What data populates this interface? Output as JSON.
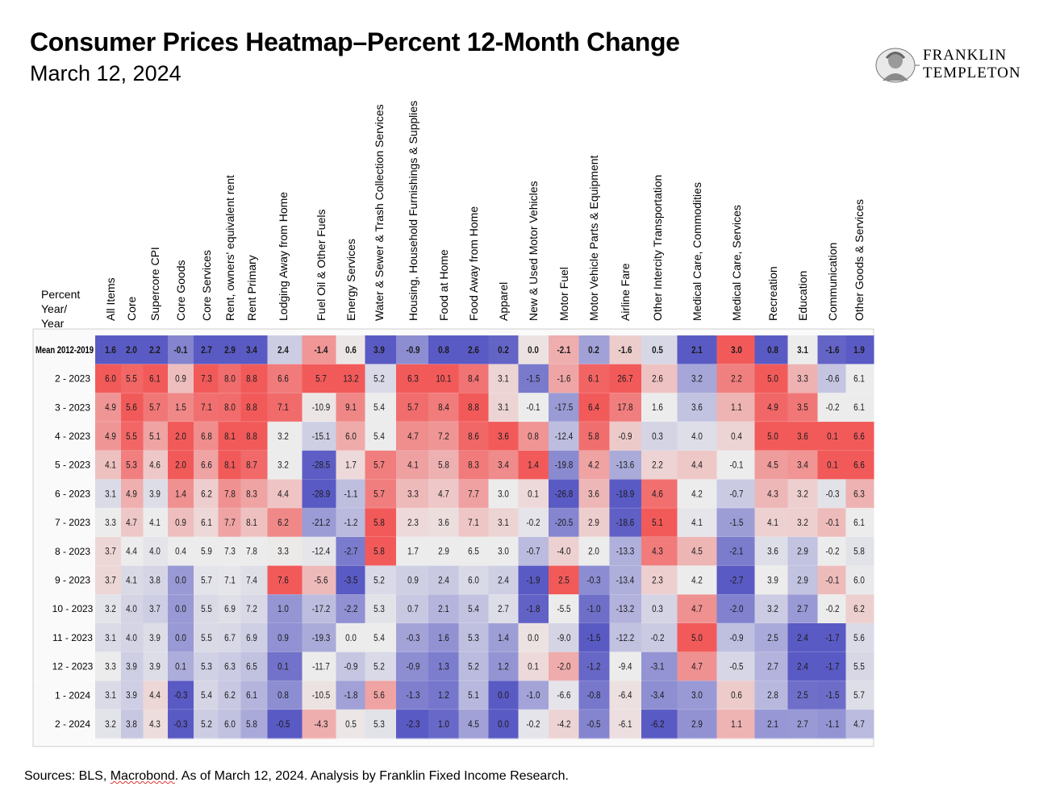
{
  "header": {
    "title": "Consumer Prices Heatmap–Percent 12-Month Change",
    "subtitle": "March 12, 2024"
  },
  "logo": {
    "line1": "FRANKLIN",
    "line2": "TEMPLETON"
  },
  "footer": {
    "source_prefix": "Sources: BLS, ",
    "source_macrobond": "Macrobond",
    "source_suffix": ". As of March 12, 2024. Analysis by Franklin Fixed Income Research."
  },
  "colors": {
    "low": "#5a5ac4",
    "neutral": "#ececec",
    "high": "#f25a5a"
  },
  "chart_data": {
    "type": "heatmap",
    "title": "Consumer Prices Heatmap–Percent 12-Month Change",
    "row_header_label": [
      "Percent",
      "Year/",
      "Year"
    ],
    "columns": [
      "All Items",
      "Core",
      "Supercore CPI",
      "Core Goods",
      "Core Services",
      "Rent, owners' equivalent rent",
      "Rent Primary",
      "Lodging Away from Home",
      "Fuel Oil & Other Fuels",
      "Energy Services",
      "Water & Sewer & Trash Collection Services",
      "Housing, Household Furnishings & Supplies",
      "Food at Home",
      "Food Away from Home",
      "Apparel",
      "New & Used Motor Vehicles",
      "Motor Fuel",
      "Motor Vehicle Parts & Equipment",
      "Airline Fare",
      "Other Intercity Transportation",
      "Medical Care, Commodities",
      "Medical Care, Services",
      "Recreation",
      "Education",
      "Communication",
      "Other Goods & Services"
    ],
    "rows": [
      {
        "label": "Mean 2012-2019",
        "values": [
          "1.6",
          "2.0",
          "2.2",
          "-0.1",
          "2.7",
          "2.9",
          "3.4",
          "2.4",
          "-1.4",
          "0.6",
          "3.9",
          "-0.9",
          "0.8",
          "2.6",
          "0.2",
          "0.0",
          "-2.1",
          "0.2",
          "-1.6",
          "0.5",
          "2.1",
          "3.0",
          "0.8",
          "3.1",
          "-1.6",
          "1.9"
        ]
      },
      {
        "label": "2 - 2023",
        "values": [
          "6.0",
          "5.5",
          "6.1",
          "0.9",
          "7.3",
          "8.0",
          "8.8",
          "6.6",
          "5.7",
          "13.2",
          "5.2",
          "6.3",
          "10.1",
          "8.4",
          "3.1",
          "-1.5",
          "-1.6",
          "6.1",
          "26.7",
          "2.6",
          "3.2",
          "2.2",
          "5.0",
          "3.3",
          "-0.6",
          "6.1"
        ]
      },
      {
        "label": "3 - 2023",
        "values": [
          "4.9",
          "5.6",
          "5.7",
          "1.5",
          "7.1",
          "8.0",
          "8.8",
          "7.1",
          "-10.9",
          "9.1",
          "5.4",
          "5.7",
          "8.4",
          "8.8",
          "3.1",
          "-0.1",
          "-17.5",
          "6.4",
          "17.8",
          "1.6",
          "3.6",
          "1.1",
          "4.9",
          "3.5",
          "-0.2",
          "6.1"
        ]
      },
      {
        "label": "4 - 2023",
        "values": [
          "4.9",
          "5.5",
          "5.1",
          "2.0",
          "6.8",
          "8.1",
          "8.8",
          "3.2",
          "-15.1",
          "6.0",
          "5.4",
          "4.7",
          "7.2",
          "8.6",
          "3.6",
          "0.8",
          "-12.4",
          "5.8",
          "-0.9",
          "0.3",
          "4.0",
          "0.4",
          "5.0",
          "3.6",
          "0.1",
          "6.6"
        ]
      },
      {
        "label": "5 - 2023",
        "values": [
          "4.1",
          "5.3",
          "4.6",
          "2.0",
          "6.6",
          "8.1",
          "8.7",
          "3.2",
          "-28.5",
          "1.7",
          "5.7",
          "4.1",
          "5.8",
          "8.3",
          "3.4",
          "1.4",
          "-19.8",
          "4.2",
          "-13.6",
          "2.2",
          "4.4",
          "-0.1",
          "4.5",
          "3.4",
          "0.1",
          "6.6"
        ]
      },
      {
        "label": "6 - 2023",
        "values": [
          "3.1",
          "4.9",
          "3.9",
          "1.4",
          "6.2",
          "7.8",
          "8.3",
          "4.4",
          "-28.9",
          "-1.1",
          "5.7",
          "3.3",
          "4.7",
          "7.7",
          "3.0",
          "0.1",
          "-26.8",
          "3.6",
          "-18.9",
          "4.6",
          "4.2",
          "-0.7",
          "4.3",
          "3.2",
          "-0.3",
          "6.3"
        ]
      },
      {
        "label": "7 - 2023",
        "values": [
          "3.3",
          "4.7",
          "4.1",
          "0.9",
          "6.1",
          "7.7",
          "8.1",
          "6.2",
          "-21.2",
          "-1.2",
          "5.8",
          "2.3",
          "3.6",
          "7.1",
          "3.1",
          "-0.2",
          "-20.5",
          "2.9",
          "-18.6",
          "5.1",
          "4.1",
          "-1.5",
          "4.1",
          "3.2",
          "-0.1",
          "6.1"
        ]
      },
      {
        "label": "8 - 2023",
        "values": [
          "3.7",
          "4.4",
          "4.0",
          "0.4",
          "5.9",
          "7.3",
          "7.8",
          "3.3",
          "-12.4",
          "-2.7",
          "5.8",
          "1.7",
          "2.9",
          "6.5",
          "3.0",
          "-0.7",
          "-4.0",
          "2.0",
          "-13.3",
          "4.3",
          "4.5",
          "-2.1",
          "3.6",
          "2.9",
          "-0.2",
          "5.8"
        ]
      },
      {
        "label": "9 - 2023",
        "values": [
          "3.7",
          "4.1",
          "3.8",
          "0.0",
          "5.7",
          "7.1",
          "7.4",
          "7.6",
          "-5.6",
          "-3.5",
          "5.2",
          "0.9",
          "2.4",
          "6.0",
          "2.4",
          "-1.9",
          "2.5",
          "-0.3",
          "-13.4",
          "2.3",
          "4.2",
          "-2.7",
          "3.9",
          "2.9",
          "-0.1",
          "6.0"
        ]
      },
      {
        "label": "10 - 2023",
        "values": [
          "3.2",
          "4.0",
          "3.7",
          "0.0",
          "5.5",
          "6.9",
          "7.2",
          "1.0",
          "-17.2",
          "-2.2",
          "5.3",
          "0.7",
          "2.1",
          "5.4",
          "2.7",
          "-1.8",
          "-5.5",
          "-1.0",
          "-13.2",
          "0.3",
          "4.7",
          "-2.0",
          "3.2",
          "2.7",
          "-0.2",
          "6.2"
        ]
      },
      {
        "label": "11 - 2023",
        "values": [
          "3.1",
          "4.0",
          "3.9",
          "0.0",
          "5.5",
          "6.7",
          "6.9",
          "0.9",
          "-19.3",
          "0.0",
          "5.4",
          "-0.3",
          "1.6",
          "5.3",
          "1.4",
          "0.0",
          "-9.0",
          "-1.5",
          "-12.2",
          "-0.2",
          "5.0",
          "-0.9",
          "2.5",
          "2.4",
          "-1.7",
          "5.6"
        ]
      },
      {
        "label": "12 - 2023",
        "values": [
          "3.3",
          "3.9",
          "3.9",
          "0.1",
          "5.3",
          "6.3",
          "6.5",
          "0.1",
          "-11.7",
          "-0.9",
          "5.2",
          "-0.9",
          "1.3",
          "5.2",
          "1.2",
          "0.1",
          "-2.0",
          "-1.2",
          "-9.4",
          "-3.1",
          "4.7",
          "-0.5",
          "2.7",
          "2.4",
          "-1.7",
          "5.5"
        ]
      },
      {
        "label": "1 - 2024",
        "values": [
          "3.1",
          "3.9",
          "4.4",
          "-0.3",
          "5.4",
          "6.2",
          "6.1",
          "0.8",
          "-10.5",
          "-1.8",
          "5.6",
          "-1.3",
          "1.2",
          "5.1",
          "0.0",
          "-1.0",
          "-6.6",
          "-0.8",
          "-6.4",
          "-3.4",
          "3.0",
          "0.6",
          "2.8",
          "2.5",
          "-1.5",
          "5.7"
        ]
      },
      {
        "label": "2 - 2024",
        "values": [
          "3.2",
          "3.8",
          "4.3",
          "-0.3",
          "5.2",
          "6.0",
          "5.8",
          "-0.5",
          "-4.3",
          "0.5",
          "5.3",
          "-2.3",
          "1.0",
          "4.5",
          "0.0",
          "-0.2",
          "-4.2",
          "-0.5",
          "-6.1",
          "-6.2",
          "2.9",
          "1.1",
          "2.1",
          "2.7",
          "-1.1",
          "4.7"
        ]
      }
    ]
  }
}
